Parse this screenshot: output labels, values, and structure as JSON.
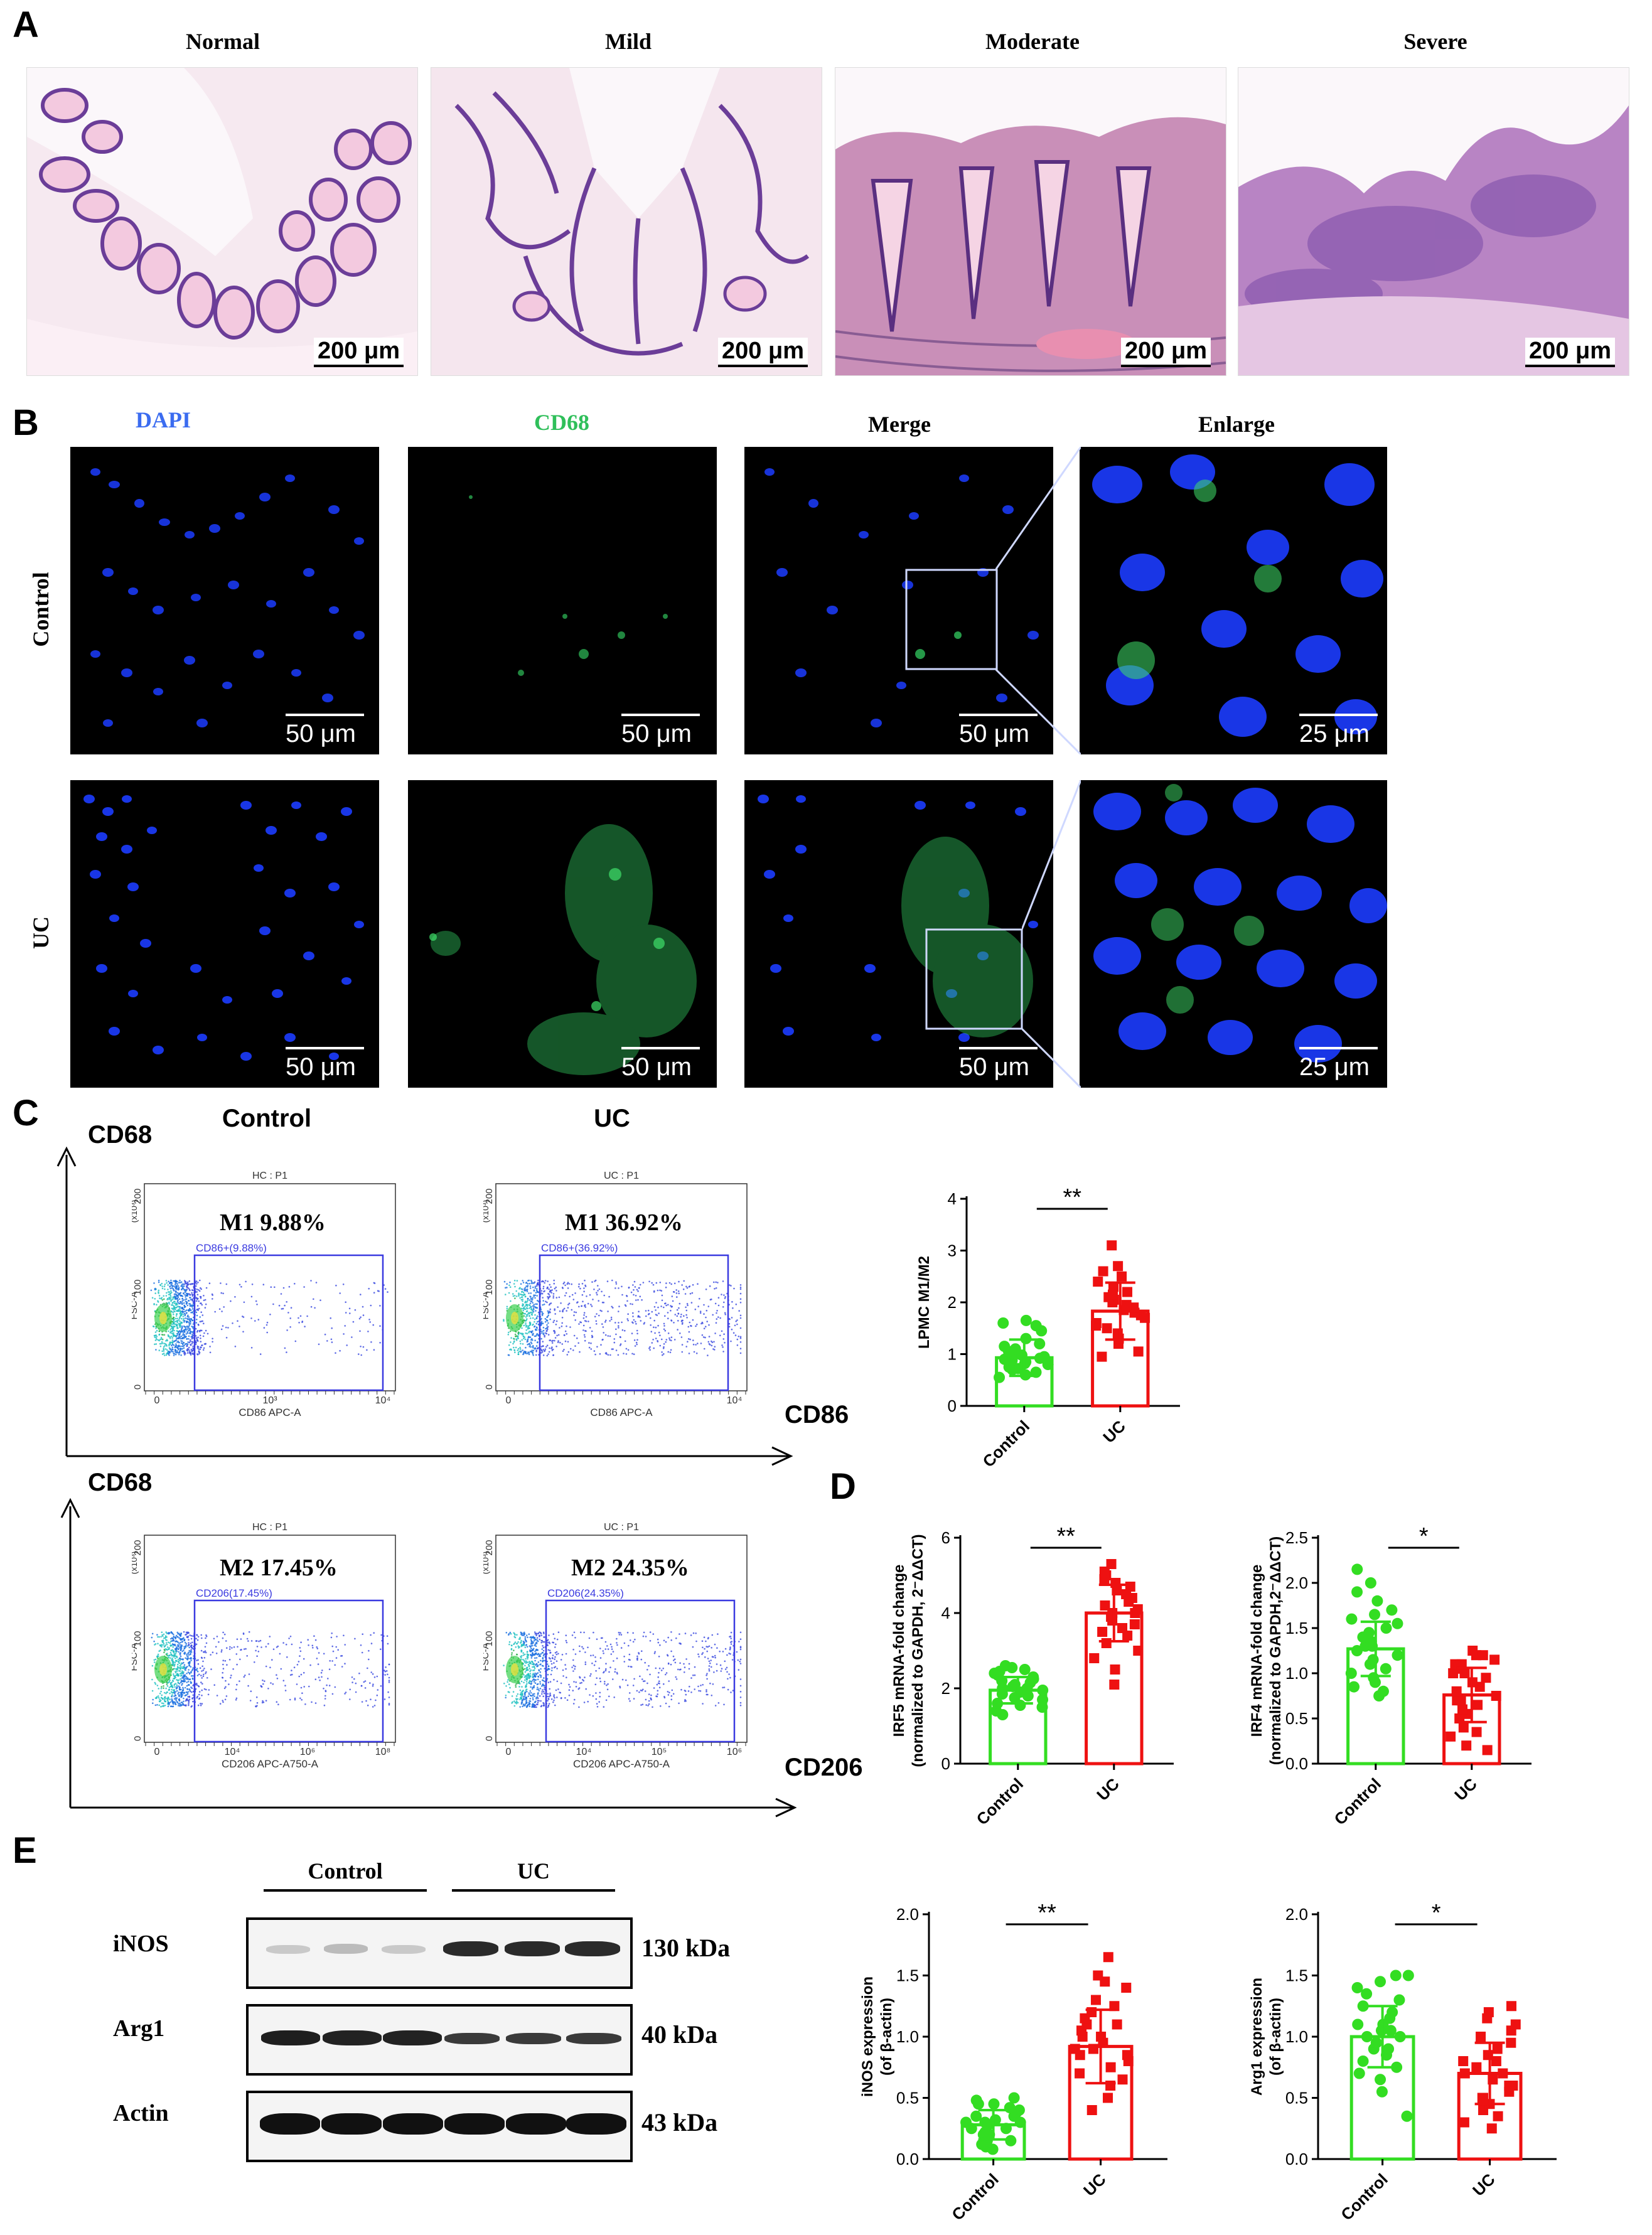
{
  "panels": {
    "A": {
      "letter": "A",
      "titles": [
        "Normal",
        "Mild",
        "Moderate",
        "Severe"
      ],
      "scale": "200 μm"
    },
    "B": {
      "letter": "B",
      "col_titles": [
        "DAPI",
        "CD68",
        "Merge",
        "Enlarge"
      ],
      "col_colors": [
        "#3b6cf0",
        "#2fbf5a",
        "#000000",
        "#000000"
      ],
      "row_labels": [
        "Control",
        "UC"
      ],
      "scale_50": "50 μm",
      "scale_25": "25 μm"
    },
    "C": {
      "letter": "C",
      "group_titles": [
        "Control",
        "UC"
      ],
      "y_axis_name": "CD68",
      "x_axis_names": [
        "CD86",
        "CD206"
      ],
      "plots": [
        {
          "header": "HC : P1",
          "gate": "CD86+(9.88%)",
          "label": "M1  9.88%",
          "xlabel": "CD86 APC-A",
          "ylabel": "FSC-A",
          "yunit": "(x10³)",
          "yticks": [
            "200",
            "100",
            "0"
          ],
          "xticks": [
            "0",
            "10³",
            "10⁴"
          ]
        },
        {
          "header": "UC : P1",
          "gate": "CD86+(36.92%)",
          "label": "M1  36.92%",
          "xlabel": "CD86 APC-A",
          "ylabel": "FSC-A",
          "yunit": "(x10³)",
          "yticks": [
            "200",
            "100",
            "0"
          ],
          "xticks": [
            "0",
            "10⁴"
          ]
        },
        {
          "header": "HC : P1",
          "gate": "CD206(17.45%)",
          "label": "M2  17.45%",
          "xlabel": "CD206 APC-A750-A",
          "ylabel": "FSC-A",
          "yunit": "(x10³)",
          "yticks": [
            "200",
            "100",
            "0"
          ],
          "xticks": [
            "0",
            "10⁴",
            "10⁶",
            "10⁸"
          ]
        },
        {
          "header": "UC : P1",
          "gate": "CD206(24.35%)",
          "label": "M2  24.35%",
          "xlabel": "CD206 APC-A750-A",
          "ylabel": "FSC-A",
          "yunit": "(x10³)",
          "yticks": [
            "200",
            "100",
            "0"
          ],
          "xticks": [
            "0",
            "10⁴",
            "10⁵",
            "10⁶"
          ]
        }
      ]
    },
    "D": {
      "letter": "D"
    },
    "E": {
      "letter": "E",
      "groups": [
        "Control",
        "UC"
      ],
      "rows": [
        {
          "name": "iNOS",
          "kda": "130 kDa"
        },
        {
          "name": "Arg1",
          "kda": "40 kDa"
        },
        {
          "name": "Actin",
          "kda": "43 kDa"
        }
      ]
    }
  },
  "chart_data": [
    {
      "id": "lpmc",
      "type": "bar",
      "categories": [
        "Control",
        "UC"
      ],
      "values": [
        0.93,
        1.83
      ],
      "errors": [
        0.35,
        0.55
      ],
      "ylabel": "LPMC M1/M2",
      "ylim": [
        0,
        4
      ],
      "yticks": [
        0,
        1,
        2,
        3,
        4
      ],
      "significance": "**",
      "colors": [
        "#33dd22",
        "#ee1111"
      ],
      "points": [
        [
          0.55,
          0.6,
          0.65,
          0.7,
          0.72,
          0.75,
          0.8,
          0.82,
          0.85,
          0.88,
          0.9,
          0.92,
          0.95,
          0.98,
          1.0,
          1.02,
          1.05,
          1.1,
          1.15,
          1.2,
          1.3,
          1.45,
          1.55,
          1.6,
          1.65
        ],
        [
          0.95,
          1.05,
          1.2,
          1.3,
          1.4,
          1.5,
          1.55,
          1.6,
          1.7,
          1.75,
          1.8,
          1.85,
          1.9,
          1.95,
          2.0,
          2.05,
          2.1,
          2.15,
          2.2,
          2.3,
          2.4,
          2.5,
          2.6,
          2.7,
          3.1
        ]
      ]
    },
    {
      "id": "irf5",
      "type": "bar",
      "categories": [
        "Control",
        "UC"
      ],
      "values": [
        1.95,
        4.0
      ],
      "errors": [
        0.35,
        0.75
      ],
      "ylabel_lines": [
        "IRF5 mRNA-fold change",
        "(normalized to GAPDH, 2⁻ΔΔCT)"
      ],
      "ylim": [
        0,
        6
      ],
      "yticks": [
        0,
        2,
        4,
        6
      ],
      "significance": "**",
      "colors": [
        "#33dd22",
        "#ee1111"
      ],
      "points": [
        [
          1.3,
          1.4,
          1.5,
          1.55,
          1.6,
          1.7,
          1.75,
          1.8,
          1.85,
          1.9,
          1.95,
          2.0,
          2.0,
          2.05,
          2.1,
          2.15,
          2.2,
          2.25,
          2.3,
          2.35,
          2.4,
          2.45,
          2.5,
          2.55,
          2.6
        ],
        [
          2.1,
          2.5,
          2.8,
          3.0,
          3.2,
          3.4,
          3.5,
          3.6,
          3.7,
          3.8,
          3.9,
          4.0,
          4.0,
          4.1,
          4.2,
          4.3,
          4.4,
          4.5,
          4.6,
          4.7,
          4.8,
          4.9,
          5.0,
          5.1,
          5.3
        ]
      ]
    },
    {
      "id": "irf4",
      "type": "bar",
      "categories": [
        "Control",
        "UC"
      ],
      "values": [
        1.27,
        0.76
      ],
      "errors": [
        0.3,
        0.3
      ],
      "ylabel_lines": [
        "IRF4 mRNA-fold change",
        "(normalized to GAPDH,2⁻ΔΔCT)"
      ],
      "ylim": [
        0,
        2.5
      ],
      "yticks": [
        0,
        0.5,
        1.0,
        1.5,
        2.0,
        2.5
      ],
      "significance": "*",
      "colors": [
        "#33dd22",
        "#ee1111"
      ],
      "points": [
        [
          0.75,
          0.8,
          0.85,
          0.9,
          0.95,
          1.0,
          1.05,
          1.1,
          1.15,
          1.2,
          1.25,
          1.3,
          1.3,
          1.35,
          1.4,
          1.45,
          1.5,
          1.55,
          1.6,
          1.65,
          1.7,
          1.8,
          1.9,
          2.0,
          2.15
        ],
        [
          0.15,
          0.2,
          0.3,
          0.35,
          0.4,
          0.5,
          0.55,
          0.6,
          0.65,
          0.7,
          0.7,
          0.75,
          0.8,
          0.85,
          0.9,
          0.95,
          1.0,
          1.0,
          1.05,
          1.1,
          1.1,
          1.15,
          1.2,
          1.2,
          1.25
        ]
      ]
    },
    {
      "id": "inos",
      "type": "bar",
      "categories": [
        "Control",
        "UC"
      ],
      "values": [
        0.28,
        0.92
      ],
      "errors": [
        0.12,
        0.3
      ],
      "ylabel_lines": [
        "iNOS expression",
        "(of β-actin)"
      ],
      "ylim": [
        0,
        2.0
      ],
      "yticks": [
        0,
        0.5,
        1.0,
        1.5,
        2.0
      ],
      "significance": "**",
      "colors": [
        "#33dd22",
        "#ee1111"
      ],
      "points": [
        [
          0.08,
          0.1,
          0.12,
          0.15,
          0.18,
          0.2,
          0.2,
          0.22,
          0.25,
          0.25,
          0.28,
          0.3,
          0.3,
          0.32,
          0.35,
          0.35,
          0.38,
          0.4,
          0.42,
          0.45,
          0.45,
          0.48,
          0.5,
          0.15,
          0.3
        ],
        [
          0.4,
          0.5,
          0.6,
          0.65,
          0.7,
          0.75,
          0.8,
          0.85,
          0.85,
          0.9,
          0.9,
          0.95,
          1.0,
          1.0,
          1.05,
          1.1,
          1.1,
          1.15,
          1.2,
          1.25,
          1.3,
          1.4,
          1.45,
          1.5,
          1.65
        ]
      ]
    },
    {
      "id": "arg1",
      "type": "bar",
      "categories": [
        "Control",
        "UC"
      ],
      "values": [
        1.0,
        0.7
      ],
      "errors": [
        0.25,
        0.25
      ],
      "ylabel_lines": [
        "Arg1 expression",
        "(of β-actin)"
      ],
      "ylim": [
        0,
        2.0
      ],
      "yticks": [
        0,
        0.5,
        1.0,
        1.5,
        2.0
      ],
      "significance": "*",
      "colors": [
        "#33dd22",
        "#ee1111"
      ],
      "points": [
        [
          0.35,
          0.55,
          0.65,
          0.7,
          0.75,
          0.8,
          0.85,
          0.9,
          0.9,
          0.95,
          1.0,
          1.0,
          1.05,
          1.05,
          1.1,
          1.1,
          1.15,
          1.2,
          1.25,
          1.3,
          1.35,
          1.4,
          1.45,
          1.5,
          1.5
        ],
        [
          0.25,
          0.3,
          0.35,
          0.4,
          0.45,
          0.5,
          0.5,
          0.55,
          0.6,
          0.6,
          0.65,
          0.7,
          0.7,
          0.75,
          0.8,
          0.8,
          0.85,
          0.9,
          0.95,
          1.0,
          1.05,
          1.1,
          1.15,
          1.2,
          1.25
        ]
      ]
    }
  ]
}
